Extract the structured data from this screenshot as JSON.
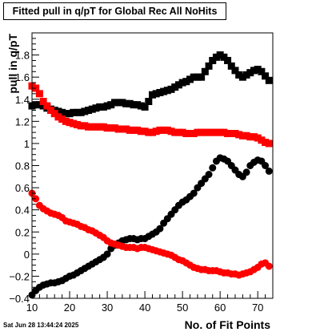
{
  "chart_data": {
    "type": "scatter",
    "title": "Fitted pull in q/pT for Global Rec All NoHits",
    "xlabel": "No. of Fit Points",
    "ylabel": "pull in q/pT",
    "xlim": [
      10,
      74
    ],
    "ylim": [
      -0.4,
      2.0
    ],
    "x_ticks": [
      10,
      20,
      30,
      40,
      50,
      60,
      70
    ],
    "y_ticks": [
      -0.4,
      -0.2,
      0,
      0.2,
      0.4,
      0.6,
      0.8,
      1,
      1.2,
      1.4,
      1.6,
      1.8
    ],
    "y_tick_labels": [
      "−0.4",
      "−0.2",
      "0",
      "0.2",
      "0.4",
      "0.6",
      "0.8",
      "1",
      "1.2",
      "1.4",
      "1.6",
      "1.8"
    ],
    "grid": false,
    "legend": "none",
    "series": [
      {
        "marker": "square",
        "color": "#000000",
        "x": [
          10,
          11,
          12,
          13,
          14,
          15,
          16,
          17,
          18,
          19,
          20,
          21,
          22,
          23,
          24,
          25,
          26,
          27,
          28,
          29,
          30,
          31,
          32,
          33,
          34,
          35,
          36,
          37,
          38,
          39,
          40,
          41,
          42,
          43,
          44,
          45,
          46,
          47,
          48,
          49,
          50,
          51,
          52,
          53,
          54,
          55,
          56,
          57,
          58,
          59,
          60,
          61,
          62,
          63,
          64,
          65,
          66,
          67,
          68,
          69,
          70,
          71,
          72,
          73
        ],
        "y": [
          1.34,
          1.35,
          1.35,
          1.34,
          1.32,
          1.31,
          1.3,
          1.29,
          1.28,
          1.27,
          1.27,
          1.28,
          1.28,
          1.28,
          1.29,
          1.3,
          1.31,
          1.32,
          1.33,
          1.33,
          1.34,
          1.35,
          1.37,
          1.37,
          1.37,
          1.36,
          1.36,
          1.35,
          1.35,
          1.34,
          1.33,
          1.38,
          1.44,
          1.45,
          1.46,
          1.47,
          1.48,
          1.49,
          1.51,
          1.53,
          1.55,
          1.56,
          1.58,
          1.6,
          1.6,
          1.6,
          1.65,
          1.7,
          1.75,
          1.78,
          1.8,
          1.78,
          1.75,
          1.7,
          1.66,
          1.62,
          1.6,
          1.62,
          1.64,
          1.66,
          1.67,
          1.65,
          1.61,
          1.57
        ]
      },
      {
        "marker": "square",
        "color": "#ff0000",
        "x": [
          10,
          11,
          12,
          13,
          14,
          15,
          16,
          17,
          18,
          19,
          20,
          21,
          22,
          23,
          24,
          25,
          26,
          27,
          28,
          29,
          30,
          31,
          32,
          33,
          34,
          35,
          36,
          37,
          38,
          39,
          40,
          41,
          42,
          43,
          44,
          45,
          46,
          47,
          48,
          49,
          50,
          51,
          52,
          53,
          54,
          55,
          56,
          57,
          58,
          59,
          60,
          61,
          62,
          63,
          64,
          65,
          66,
          67,
          68,
          69,
          70,
          71,
          72,
          73
        ],
        "y": [
          1.52,
          1.5,
          1.45,
          1.38,
          1.34,
          1.3,
          1.27,
          1.24,
          1.22,
          1.2,
          1.19,
          1.18,
          1.17,
          1.16,
          1.16,
          1.15,
          1.15,
          1.15,
          1.15,
          1.15,
          1.14,
          1.14,
          1.14,
          1.13,
          1.13,
          1.13,
          1.12,
          1.12,
          1.12,
          1.11,
          1.11,
          1.1,
          1.1,
          1.11,
          1.12,
          1.12,
          1.12,
          1.11,
          1.1,
          1.1,
          1.1,
          1.09,
          1.09,
          1.09,
          1.1,
          1.1,
          1.1,
          1.1,
          1.1,
          1.1,
          1.1,
          1.1,
          1.09,
          1.09,
          1.09,
          1.08,
          1.07,
          1.07,
          1.06,
          1.06,
          1.05,
          1.03,
          1.01,
          1.0
        ]
      },
      {
        "marker": "circle",
        "color": "#000000",
        "x": [
          10,
          11,
          12,
          13,
          14,
          15,
          16,
          17,
          18,
          19,
          20,
          21,
          22,
          23,
          24,
          25,
          26,
          27,
          28,
          29,
          30,
          31,
          32,
          33,
          34,
          35,
          36,
          37,
          38,
          39,
          40,
          41,
          42,
          43,
          44,
          45,
          46,
          47,
          48,
          49,
          50,
          51,
          52,
          53,
          54,
          55,
          56,
          57,
          58,
          59,
          60,
          61,
          62,
          63,
          64,
          65,
          66,
          67,
          68,
          69,
          70,
          71,
          72,
          73
        ],
        "y": [
          -0.37,
          -0.33,
          -0.3,
          -0.28,
          -0.27,
          -0.26,
          -0.26,
          -0.25,
          -0.24,
          -0.22,
          -0.2,
          -0.19,
          -0.17,
          -0.15,
          -0.13,
          -0.11,
          -0.09,
          -0.07,
          -0.05,
          -0.03,
          0.0,
          0.05,
          0.08,
          0.1,
          0.12,
          0.13,
          0.14,
          0.14,
          0.13,
          0.14,
          0.14,
          0.16,
          0.18,
          0.2,
          0.23,
          0.28,
          0.32,
          0.36,
          0.4,
          0.44,
          0.47,
          0.49,
          0.52,
          0.55,
          0.6,
          0.64,
          0.68,
          0.72,
          0.78,
          0.84,
          0.87,
          0.86,
          0.84,
          0.8,
          0.76,
          0.72,
          0.7,
          0.74,
          0.8,
          0.83,
          0.85,
          0.84,
          0.8,
          0.75
        ]
      },
      {
        "marker": "circle",
        "color": "#ff0000",
        "x": [
          10,
          11,
          12,
          13,
          14,
          15,
          16,
          17,
          18,
          19,
          20,
          21,
          22,
          23,
          24,
          25,
          26,
          27,
          28,
          29,
          30,
          31,
          32,
          33,
          34,
          35,
          36,
          37,
          38,
          39,
          40,
          41,
          42,
          43,
          44,
          45,
          46,
          47,
          48,
          49,
          50,
          51,
          52,
          53,
          54,
          55,
          56,
          57,
          58,
          59,
          60,
          61,
          62,
          63,
          64,
          65,
          66,
          67,
          68,
          69,
          70,
          71,
          72,
          73
        ],
        "y": [
          0.55,
          0.5,
          0.44,
          0.41,
          0.39,
          0.37,
          0.36,
          0.35,
          0.33,
          0.3,
          0.29,
          0.28,
          0.27,
          0.25,
          0.24,
          0.22,
          0.21,
          0.19,
          0.17,
          0.15,
          0.12,
          0.1,
          0.09,
          0.08,
          0.07,
          0.06,
          0.06,
          0.06,
          0.05,
          0.06,
          0.06,
          0.05,
          0.04,
          0.03,
          0.02,
          0.01,
          0.0,
          -0.01,
          -0.03,
          -0.05,
          -0.06,
          -0.08,
          -0.1,
          -0.12,
          -0.13,
          -0.14,
          -0.14,
          -0.15,
          -0.15,
          -0.15,
          -0.16,
          -0.17,
          -0.17,
          -0.18,
          -0.18,
          -0.19,
          -0.18,
          -0.17,
          -0.16,
          -0.14,
          -0.12,
          -0.09,
          -0.08,
          -0.11
        ]
      }
    ]
  },
  "timestamp": "Sat Jun 28 13:44:24 2025"
}
